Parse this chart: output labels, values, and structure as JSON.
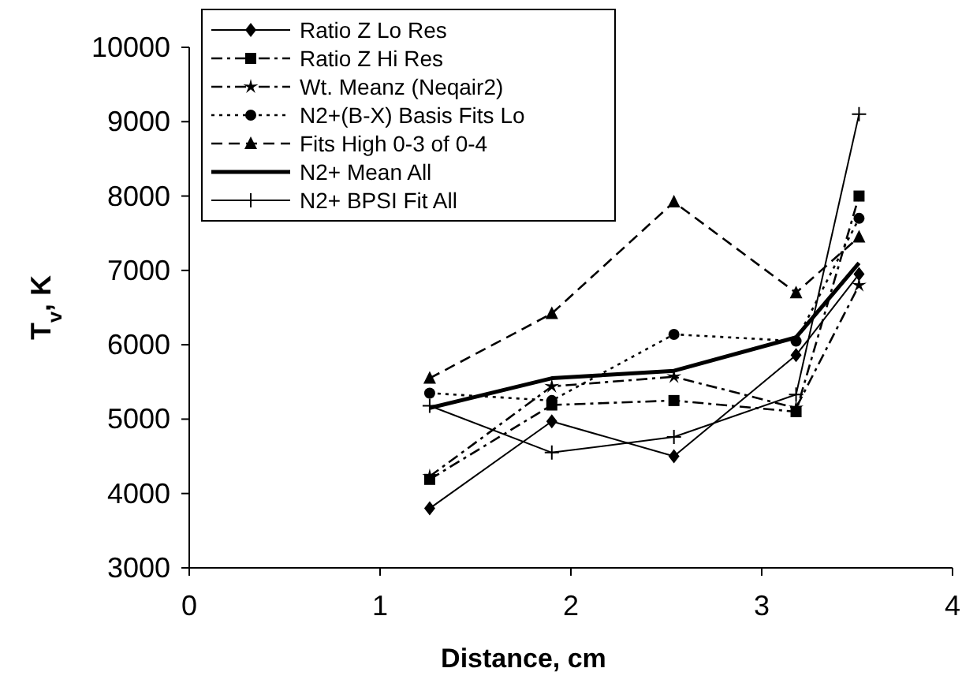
{
  "chart_data": {
    "type": "line",
    "xlabel": "Distance, cm",
    "ylabel": "T$_{v}$, K",
    "xlim": [
      0,
      4
    ],
    "xticks": [
      0,
      1,
      2,
      3,
      4
    ],
    "ylim": [
      3000,
      10000
    ],
    "yticks": [
      3000,
      4000,
      5000,
      6000,
      7000,
      8000,
      9000,
      10000
    ],
    "grid": false,
    "legend": "top left",
    "x": [
      1.26,
      1.9,
      2.54,
      3.18,
      3.51
    ],
    "series": [
      {
        "name": "Ratio Z Lo Res",
        "color": "#000000",
        "marker": "diamond",
        "line_style": "solid",
        "values": [
          3800,
          4970,
          4500,
          5860,
          6950
        ]
      },
      {
        "name": "Ratio Z Hi Res",
        "color": "#000000",
        "marker": "square",
        "line_style": "dashdot",
        "values": [
          4190,
          5190,
          5250,
          5100,
          8000
        ]
      },
      {
        "name": "Wt. Meanz (Neqair2)",
        "color": "#000000",
        "marker": "star",
        "line_style": "dashdot",
        "values": [
          4230,
          5440,
          5570,
          5150,
          6800
        ]
      },
      {
        "name": "N2+(B-X) Basis Fits Lo",
        "color": "#000000",
        "marker": "circle",
        "line_style": "dotted",
        "values": [
          5350,
          5250,
          6140,
          6050,
          7700
        ]
      },
      {
        "name": "Fits High 0-3 of 0-4",
        "color": "#000000",
        "marker": "triangle",
        "line_style": "dashed",
        "values": [
          5550,
          6420,
          7920,
          6700,
          7450
        ]
      },
      {
        "name": "N2+ Mean All",
        "color": "#000000",
        "marker": "none",
        "line_style": "solid",
        "values": [
          5150,
          5550,
          5650,
          6100,
          7100
        ]
      },
      {
        "name": "N2+ BPSI Fit All",
        "color": "#000000",
        "marker": "cross",
        "line_style": "solid",
        "values": [
          5180,
          4550,
          4760,
          5330,
          9100
        ]
      }
    ]
  }
}
